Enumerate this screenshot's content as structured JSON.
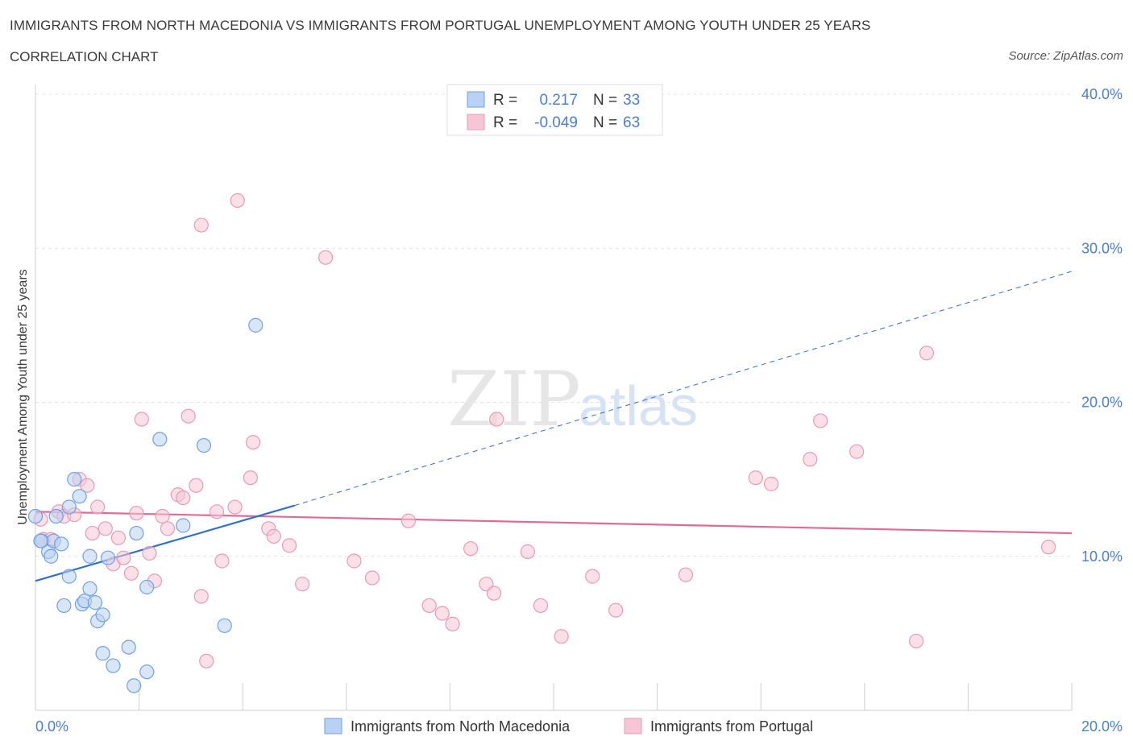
{
  "header": {
    "title": "IMMIGRANTS FROM NORTH MACEDONIA VS IMMIGRANTS FROM PORTUGAL UNEMPLOYMENT AMONG YOUTH UNDER 25 YEARS",
    "subtitle": "CORRELATION CHART",
    "source": "Source: ZipAtlas.com"
  },
  "colors": {
    "blue": "#6fa1e4",
    "blue_fill": "#b9d1f3",
    "blue_line": "#2f6fcd",
    "pink": "#e89ab5",
    "pink_fill": "#f7c6d6",
    "pink_line": "#e06c96",
    "tick_label": "#4a7fd0"
  },
  "watermark": {
    "zip": "ZIP",
    "atlas": "atlas"
  },
  "stats": {
    "north_macedonia": {
      "r_label": "R =",
      "r_value": "0.217",
      "n_label": "N =",
      "n_value": "33"
    },
    "portugal": {
      "r_label": "R =",
      "r_value": "-0.049",
      "n_label": "N =",
      "n_value": "63"
    }
  },
  "chart_data": {
    "type": "scatter",
    "title": "IMMIGRANTS FROM NORTH MACEDONIA VS IMMIGRANTS FROM PORTUGAL UNEMPLOYMENT AMONG YOUTH UNDER 25 YEARS",
    "xlabel": "",
    "ylabel": "Unemployment Among Youth under 25 years",
    "xlim": [
      0,
      20
    ],
    "ylim": [
      0,
      40
    ],
    "x_tick_labels": [
      "0.0%",
      "20.0%"
    ],
    "y_ticks": [
      10,
      20,
      30,
      40
    ],
    "y_tick_labels": [
      "10.0%",
      "20.0%",
      "30.0%",
      "40.0%"
    ],
    "grid": true,
    "legend_position": "bottom-center",
    "series": [
      {
        "name": "Immigrants from North Macedonia",
        "color": "#6fa1e4",
        "r": 0.217,
        "n": 33,
        "points": [
          [
            0.0,
            12.6
          ],
          [
            0.12,
            11.0
          ],
          [
            0.25,
            10.3
          ],
          [
            0.3,
            10.0
          ],
          [
            0.35,
            11.0
          ],
          [
            0.4,
            12.6
          ],
          [
            0.5,
            10.8
          ],
          [
            0.55,
            6.8
          ],
          [
            0.65,
            8.7
          ],
          [
            0.65,
            13.2
          ],
          [
            0.75,
            15.0
          ],
          [
            0.85,
            13.9
          ],
          [
            0.9,
            6.9
          ],
          [
            0.95,
            7.1
          ],
          [
            1.05,
            7.9
          ],
          [
            1.05,
            10.0
          ],
          [
            1.15,
            7.0
          ],
          [
            1.2,
            5.8
          ],
          [
            1.3,
            6.2
          ],
          [
            1.3,
            3.7
          ],
          [
            1.4,
            9.9
          ],
          [
            1.5,
            2.9
          ],
          [
            1.8,
            4.1
          ],
          [
            1.9,
            1.6
          ],
          [
            1.95,
            11.5
          ],
          [
            2.15,
            8.0
          ],
          [
            2.15,
            2.5
          ],
          [
            2.4,
            17.6
          ],
          [
            2.85,
            12.0
          ],
          [
            3.25,
            17.2
          ],
          [
            3.65,
            5.5
          ],
          [
            4.25,
            25.0
          ],
          [
            0.1,
            11.0
          ]
        ],
        "trend": {
          "x": [
            0.0,
            5.0
          ],
          "y": [
            8.4,
            13.3
          ]
        },
        "trend_extended": {
          "x": [
            5.0,
            20.0
          ],
          "y": [
            13.3,
            28.5
          ]
        }
      },
      {
        "name": "Immigrants from Portugal",
        "color": "#e89ab5",
        "r": -0.049,
        "n": 63,
        "points": [
          [
            0.1,
            12.4
          ],
          [
            0.15,
            11.1
          ],
          [
            0.3,
            11.1
          ],
          [
            0.45,
            12.9
          ],
          [
            0.55,
            12.6
          ],
          [
            0.75,
            12.7
          ],
          [
            0.85,
            15.0
          ],
          [
            1.0,
            14.6
          ],
          [
            1.1,
            11.5
          ],
          [
            1.2,
            13.2
          ],
          [
            1.35,
            11.8
          ],
          [
            1.5,
            9.5
          ],
          [
            1.6,
            11.2
          ],
          [
            1.7,
            9.9
          ],
          [
            1.85,
            8.9
          ],
          [
            1.95,
            12.8
          ],
          [
            2.05,
            18.9
          ],
          [
            2.2,
            10.2
          ],
          [
            2.3,
            8.4
          ],
          [
            2.45,
            12.6
          ],
          [
            2.55,
            11.8
          ],
          [
            2.75,
            14.0
          ],
          [
            2.85,
            13.8
          ],
          [
            2.95,
            19.1
          ],
          [
            3.1,
            14.6
          ],
          [
            3.2,
            7.4
          ],
          [
            3.3,
            3.2
          ],
          [
            3.5,
            12.9
          ],
          [
            3.6,
            9.7
          ],
          [
            3.85,
            13.2
          ],
          [
            3.9,
            33.1
          ],
          [
            4.15,
            15.1
          ],
          [
            4.2,
            17.4
          ],
          [
            4.5,
            11.8
          ],
          [
            4.6,
            11.3
          ],
          [
            4.9,
            10.7
          ],
          [
            5.15,
            8.2
          ],
          [
            5.6,
            29.4
          ],
          [
            6.15,
            9.7
          ],
          [
            6.5,
            8.6
          ],
          [
            7.2,
            12.3
          ],
          [
            7.6,
            6.8
          ],
          [
            7.85,
            6.3
          ],
          [
            8.05,
            5.6
          ],
          [
            8.4,
            10.5
          ],
          [
            8.7,
            8.2
          ],
          [
            8.85,
            7.6
          ],
          [
            9.5,
            10.3
          ],
          [
            9.75,
            6.8
          ],
          [
            10.15,
            4.8
          ],
          [
            10.75,
            8.7
          ],
          [
            11.2,
            6.5
          ],
          [
            12.55,
            8.8
          ],
          [
            13.9,
            15.1
          ],
          [
            14.2,
            14.7
          ],
          [
            14.95,
            16.3
          ],
          [
            15.15,
            18.8
          ],
          [
            15.85,
            16.8
          ],
          [
            17.0,
            4.5
          ],
          [
            17.2,
            23.2
          ],
          [
            8.9,
            18.9
          ],
          [
            3.2,
            31.5
          ],
          [
            19.55,
            10.6
          ]
        ],
        "trend": {
          "x": [
            0.0,
            20.0
          ],
          "y": [
            12.9,
            11.5
          ]
        }
      }
    ]
  }
}
